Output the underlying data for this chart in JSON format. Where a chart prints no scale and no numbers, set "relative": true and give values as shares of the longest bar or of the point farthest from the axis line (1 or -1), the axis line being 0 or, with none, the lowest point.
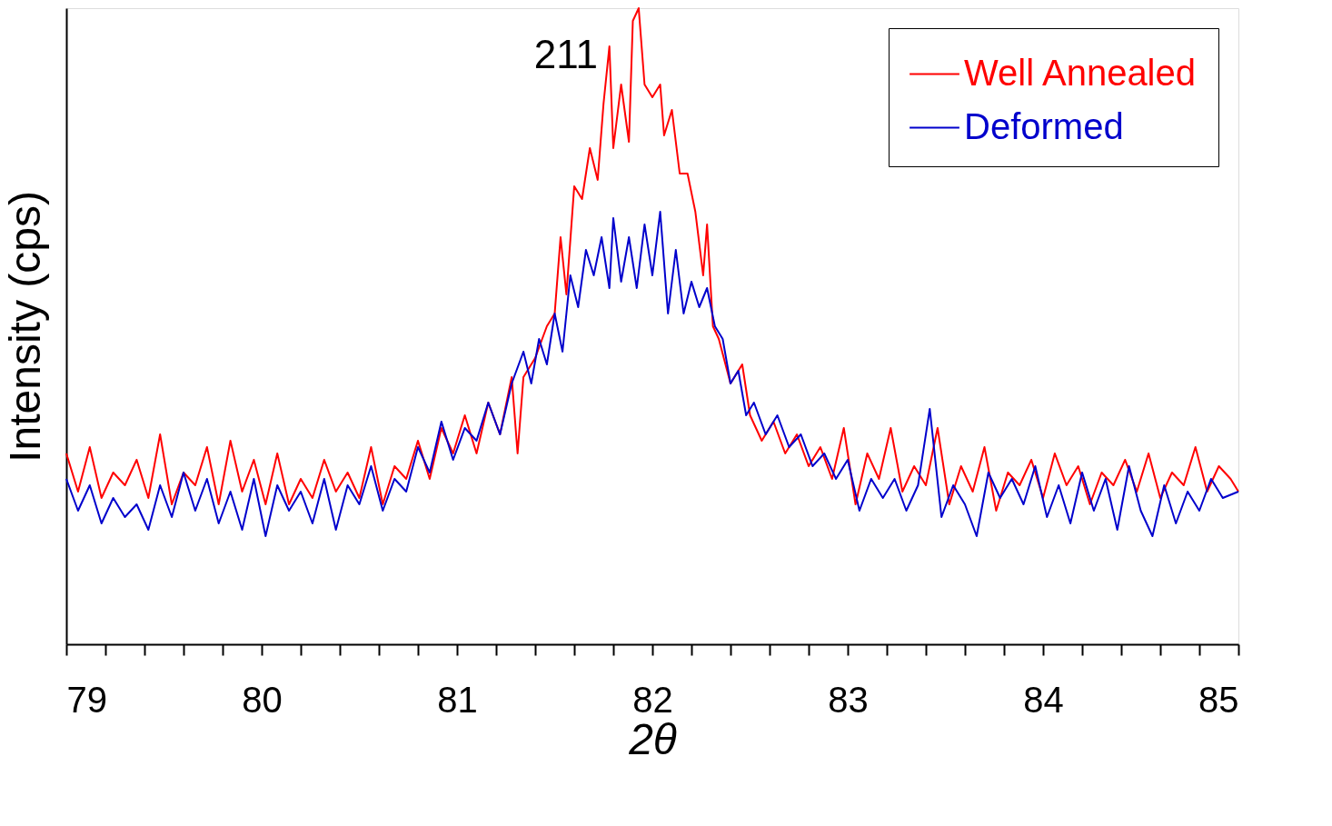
{
  "chart_data": {
    "type": "line",
    "relative": true,
    "xlabel": "2θ",
    "ylabel": "Intensity (cps)",
    "xlim": [
      79,
      85
    ],
    "xticks": [
      79,
      {
        "value": 79.2,
        "label": null
      },
      {
        "value": 79.4,
        "label": null
      },
      {
        "value": 79.6,
        "label": null
      },
      {
        "value": 79.8,
        "label": null
      },
      80,
      {
        "value": 80.2,
        "label": null
      },
      {
        "value": 80.4,
        "label": null
      },
      {
        "value": 80.6,
        "label": null
      },
      {
        "value": 80.8,
        "label": null
      },
      81,
      {
        "value": 81.2,
        "label": null
      },
      {
        "value": 81.4,
        "label": null
      },
      {
        "value": 81.6,
        "label": null
      },
      {
        "value": 81.8,
        "label": null
      },
      82,
      {
        "value": 82.2,
        "label": null
      },
      {
        "value": 82.4,
        "label": null
      },
      {
        "value": 82.6,
        "label": null
      },
      {
        "value": 82.8,
        "label": null
      },
      83,
      {
        "value": 83.2,
        "label": null
      },
      {
        "value": 83.4,
        "label": null
      },
      {
        "value": 83.6,
        "label": null
      },
      {
        "value": 83.8,
        "label": null
      },
      84,
      {
        "value": 84.2,
        "label": null
      },
      {
        "value": 84.4,
        "label": null
      },
      {
        "value": 84.6,
        "label": null
      },
      {
        "value": 84.8,
        "label": null
      },
      85
    ],
    "legend": "top right",
    "grid": false,
    "marker": "none",
    "line_style": "solid",
    "annotations": [
      "211"
    ],
    "series": [
      {
        "name": "Well Annealed",
        "color": "#ff0000",
        "x": [
          79.0,
          79.06,
          79.12,
          79.18,
          79.24,
          79.3,
          79.36,
          79.42,
          79.48,
          79.54,
          79.6,
          79.66,
          79.72,
          79.78,
          79.84,
          79.9,
          79.96,
          80.02,
          80.08,
          80.14,
          80.2,
          80.26,
          80.32,
          80.38,
          80.44,
          80.5,
          80.56,
          80.62,
          80.68,
          80.74,
          80.8,
          80.86,
          80.92,
          80.98,
          81.04,
          81.1,
          81.16,
          81.22,
          81.28,
          81.31,
          81.34,
          81.4,
          81.46,
          81.5,
          81.53,
          81.56,
          81.6,
          81.64,
          81.68,
          81.72,
          81.75,
          81.78,
          81.8,
          81.84,
          81.88,
          81.9,
          81.93,
          81.96,
          82.0,
          82.04,
          82.06,
          82.1,
          82.14,
          82.18,
          82.22,
          82.26,
          82.28,
          82.31,
          82.34,
          82.4,
          82.46,
          82.5,
          82.56,
          82.62,
          82.68,
          82.74,
          82.8,
          82.86,
          82.92,
          82.98,
          83.04,
          83.1,
          83.16,
          83.22,
          83.28,
          83.34,
          83.4,
          83.46,
          83.52,
          83.58,
          83.64,
          83.7,
          83.76,
          83.82,
          83.88,
          83.94,
          84.0,
          84.06,
          84.12,
          84.18,
          84.24,
          84.3,
          84.36,
          84.42,
          84.48,
          84.54,
          84.6,
          84.66,
          84.72,
          84.78,
          84.84,
          84.9,
          84.96,
          85.0
        ],
        "values": [
          0.3,
          0.24,
          0.31,
          0.23,
          0.27,
          0.25,
          0.29,
          0.23,
          0.33,
          0.22,
          0.27,
          0.25,
          0.31,
          0.22,
          0.32,
          0.24,
          0.29,
          0.22,
          0.3,
          0.22,
          0.26,
          0.23,
          0.29,
          0.24,
          0.27,
          0.23,
          0.31,
          0.22,
          0.28,
          0.26,
          0.32,
          0.26,
          0.34,
          0.3,
          0.36,
          0.3,
          0.38,
          0.33,
          0.42,
          0.3,
          0.42,
          0.45,
          0.5,
          0.52,
          0.64,
          0.55,
          0.72,
          0.7,
          0.78,
          0.73,
          0.85,
          0.94,
          0.78,
          0.88,
          0.79,
          0.98,
          1.0,
          0.88,
          0.86,
          0.88,
          0.8,
          0.84,
          0.74,
          0.74,
          0.68,
          0.58,
          0.66,
          0.5,
          0.48,
          0.41,
          0.44,
          0.36,
          0.32,
          0.35,
          0.3,
          0.33,
          0.28,
          0.31,
          0.26,
          0.34,
          0.22,
          0.3,
          0.26,
          0.34,
          0.24,
          0.28,
          0.25,
          0.34,
          0.22,
          0.28,
          0.24,
          0.31,
          0.21,
          0.27,
          0.25,
          0.29,
          0.23,
          0.3,
          0.25,
          0.28,
          0.22,
          0.27,
          0.25,
          0.29,
          0.24,
          0.3,
          0.23,
          0.27,
          0.25,
          0.31,
          0.24,
          0.28,
          0.26,
          0.24
        ]
      },
      {
        "name": "Deformed",
        "color": "#0000cc",
        "x": [
          79.0,
          79.06,
          79.12,
          79.18,
          79.24,
          79.3,
          79.36,
          79.42,
          79.48,
          79.54,
          79.6,
          79.66,
          79.72,
          79.78,
          79.84,
          79.9,
          79.96,
          80.02,
          80.08,
          80.14,
          80.2,
          80.26,
          80.32,
          80.38,
          80.44,
          80.5,
          80.56,
          80.62,
          80.68,
          80.74,
          80.8,
          80.86,
          80.92,
          80.98,
          81.04,
          81.1,
          81.16,
          81.22,
          81.28,
          81.34,
          81.38,
          81.42,
          81.46,
          81.5,
          81.54,
          81.58,
          81.62,
          81.66,
          81.7,
          81.74,
          81.78,
          81.8,
          81.84,
          81.88,
          81.92,
          81.96,
          82.0,
          82.04,
          82.08,
          82.12,
          82.16,
          82.2,
          82.24,
          82.28,
          82.32,
          82.36,
          82.4,
          82.44,
          82.48,
          82.52,
          82.58,
          82.64,
          82.7,
          82.76,
          82.82,
          82.88,
          82.94,
          83.0,
          83.06,
          83.12,
          83.18,
          83.24,
          83.3,
          83.36,
          83.42,
          83.48,
          83.54,
          83.6,
          83.66,
          83.72,
          83.78,
          83.84,
          83.9,
          83.96,
          84.02,
          84.08,
          84.14,
          84.2,
          84.26,
          84.32,
          84.38,
          84.44,
          84.5,
          84.56,
          84.62,
          84.68,
          84.74,
          84.8,
          84.86,
          84.92,
          85.0
        ],
        "values": [
          0.26,
          0.21,
          0.25,
          0.19,
          0.23,
          0.2,
          0.22,
          0.18,
          0.25,
          0.2,
          0.27,
          0.21,
          0.26,
          0.19,
          0.24,
          0.18,
          0.26,
          0.17,
          0.25,
          0.21,
          0.24,
          0.19,
          0.26,
          0.18,
          0.25,
          0.22,
          0.28,
          0.21,
          0.26,
          0.24,
          0.31,
          0.27,
          0.35,
          0.29,
          0.34,
          0.32,
          0.38,
          0.33,
          0.41,
          0.46,
          0.41,
          0.48,
          0.44,
          0.52,
          0.46,
          0.58,
          0.53,
          0.62,
          0.58,
          0.64,
          0.56,
          0.67,
          0.57,
          0.64,
          0.56,
          0.66,
          0.58,
          0.68,
          0.52,
          0.62,
          0.52,
          0.57,
          0.53,
          0.56,
          0.5,
          0.48,
          0.41,
          0.43,
          0.36,
          0.38,
          0.33,
          0.36,
          0.31,
          0.33,
          0.28,
          0.3,
          0.26,
          0.29,
          0.21,
          0.26,
          0.23,
          0.26,
          0.21,
          0.25,
          0.37,
          0.2,
          0.25,
          0.22,
          0.17,
          0.27,
          0.23,
          0.26,
          0.22,
          0.28,
          0.2,
          0.25,
          0.19,
          0.27,
          0.21,
          0.26,
          0.18,
          0.28,
          0.21,
          0.17,
          0.25,
          0.19,
          0.24,
          0.21,
          0.26,
          0.23,
          0.24
        ]
      }
    ]
  }
}
